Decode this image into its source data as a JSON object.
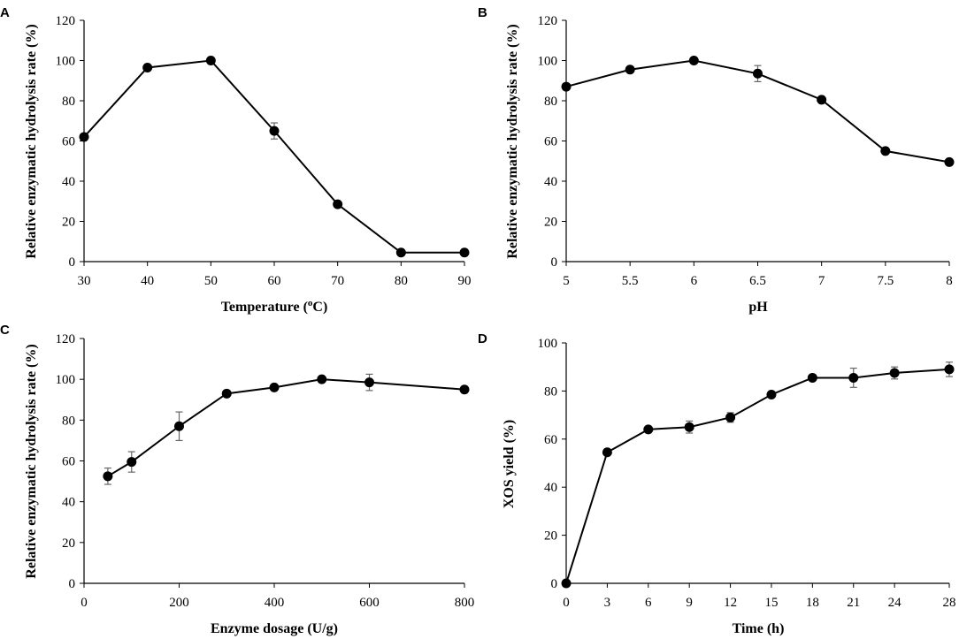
{
  "chart_data": [
    {
      "panel": "A",
      "type": "line",
      "xlabel": "Temperature (",
      "xlabel_sup": "o",
      "xlabel_tail": "C)",
      "ylabel": "Relative enzymatic hydrolysis rate (%)",
      "xlim": [
        30,
        90
      ],
      "ylim": [
        0,
        120
      ],
      "xticks": [
        "30",
        "40",
        "50",
        "60",
        "70",
        "80",
        "90"
      ],
      "yticks": [
        "0",
        "20",
        "40",
        "60",
        "80",
        "100",
        "120"
      ],
      "x": [
        30,
        40,
        50,
        60,
        70,
        80,
        90
      ],
      "values": [
        62,
        96.5,
        100,
        65,
        28.5,
        4.5,
        4.5
      ],
      "errors": [
        0,
        0,
        0,
        4,
        0,
        0,
        0
      ]
    },
    {
      "panel": "B",
      "type": "line",
      "xlabel": "pH",
      "ylabel": "Relative enzymatic hydrolysis rate (%)",
      "xlim": [
        5,
        8
      ],
      "ylim": [
        0,
        120
      ],
      "xticks": [
        "5",
        "5.5",
        "6",
        "6.5",
        "7",
        "7.5",
        "8"
      ],
      "yticks": [
        "0",
        "20",
        "40",
        "60",
        "80",
        "100",
        "120"
      ],
      "x": [
        5,
        5.5,
        6,
        6.5,
        7,
        7.5,
        8
      ],
      "values": [
        87,
        95.5,
        100,
        93.5,
        80.5,
        55,
        49.5
      ],
      "errors": [
        0,
        0,
        0,
        4,
        0,
        0,
        0
      ]
    },
    {
      "panel": "C",
      "type": "line",
      "xlabel": "Enzyme dosage (U/g)",
      "ylabel": "Relative enzymatic hydrolysis rate (%)",
      "xlim": [
        0,
        800
      ],
      "ylim": [
        0,
        120
      ],
      "xticks": [
        "0",
        "200",
        "400",
        "600",
        "800"
      ],
      "yticks": [
        "0",
        "20",
        "40",
        "60",
        "80",
        "100",
        "120"
      ],
      "x": [
        50,
        100,
        200,
        300,
        400,
        500,
        600,
        800
      ],
      "values": [
        52.5,
        59.5,
        77,
        93,
        96,
        100,
        98.5,
        95
      ],
      "errors": [
        4,
        5,
        7,
        0,
        0,
        0,
        4,
        0
      ]
    },
    {
      "panel": "D",
      "type": "line",
      "xlabel": "Time (h)",
      "ylabel": "XOS yield (%)",
      "xlim": [
        0,
        28
      ],
      "ylim": [
        0,
        100
      ],
      "xticks": [
        "0",
        "3",
        "6",
        "9",
        "12",
        "15",
        "18",
        "21",
        "24",
        "28"
      ],
      "xtick_values": [
        0,
        3,
        6,
        9,
        12,
        15,
        18,
        21,
        24,
        28
      ],
      "yticks": [
        "0",
        "20",
        "40",
        "60",
        "80",
        "100"
      ],
      "x": [
        0,
        3,
        6,
        9,
        12,
        15,
        18,
        21,
        24,
        28
      ],
      "values": [
        0,
        54.5,
        64,
        65,
        69,
        78.5,
        85.5,
        85.5,
        87.5,
        89
      ],
      "errors": [
        0,
        0,
        0,
        2.5,
        2,
        0,
        0,
        4,
        2.5,
        3
      ]
    }
  ]
}
